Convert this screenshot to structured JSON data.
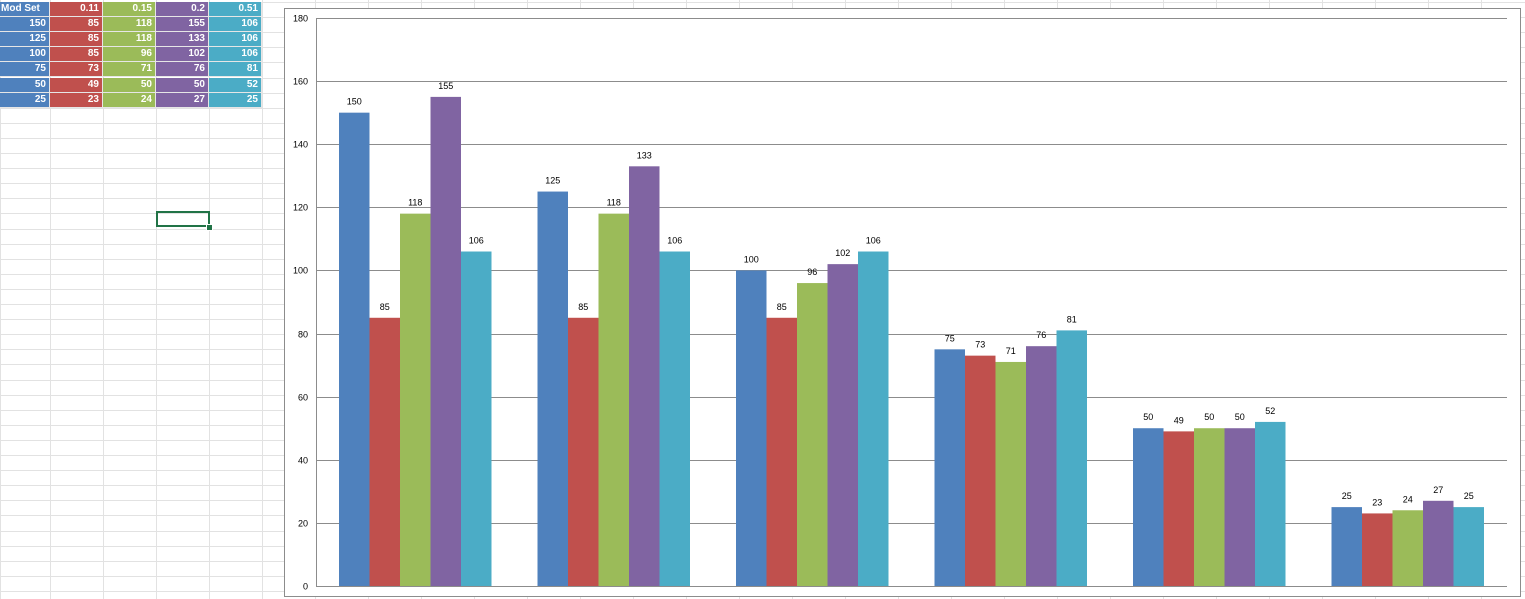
{
  "spreadsheet": {
    "header_row": [
      "Mod Set",
      "0.11",
      "0.15",
      "0.2",
      "0.51"
    ],
    "rows": [
      [
        "150",
        "85",
        "118",
        "155",
        "106"
      ],
      [
        "125",
        "85",
        "118",
        "133",
        "106"
      ],
      [
        "100",
        "85",
        "96",
        "102",
        "106"
      ],
      [
        "75",
        "73",
        "71",
        "76",
        "81"
      ],
      [
        "50",
        "49",
        "50",
        "50",
        "52"
      ],
      [
        "25",
        "23",
        "24",
        "27",
        "25"
      ]
    ],
    "column_colors": [
      "#4f81bd",
      "#c0504d",
      "#9bbb59",
      "#8064a2",
      "#4bacc6"
    ],
    "selected_cell": "D14"
  },
  "chart_data": {
    "type": "bar",
    "categories": [
      "",
      "",
      "",
      "",
      "",
      ""
    ],
    "series": [
      {
        "color": "#4f81bd",
        "values": [
          150,
          125,
          100,
          75,
          50,
          25
        ]
      },
      {
        "color": "#c0504d",
        "values": [
          85,
          85,
          85,
          73,
          49,
          23
        ]
      },
      {
        "color": "#9bbb59",
        "values": [
          118,
          118,
          96,
          71,
          50,
          24
        ]
      },
      {
        "color": "#8064a2",
        "values": [
          155,
          133,
          102,
          76,
          50,
          27
        ]
      },
      {
        "color": "#4bacc6",
        "values": [
          106,
          106,
          106,
          81,
          52,
          25
        ]
      }
    ],
    "ylim": [
      0,
      180
    ],
    "yticks": [
      0,
      20,
      40,
      60,
      80,
      100,
      120,
      140,
      160,
      180
    ],
    "grid": true,
    "data_labels": true,
    "legend": "none",
    "title": "",
    "xlabel": "",
    "ylabel": ""
  }
}
